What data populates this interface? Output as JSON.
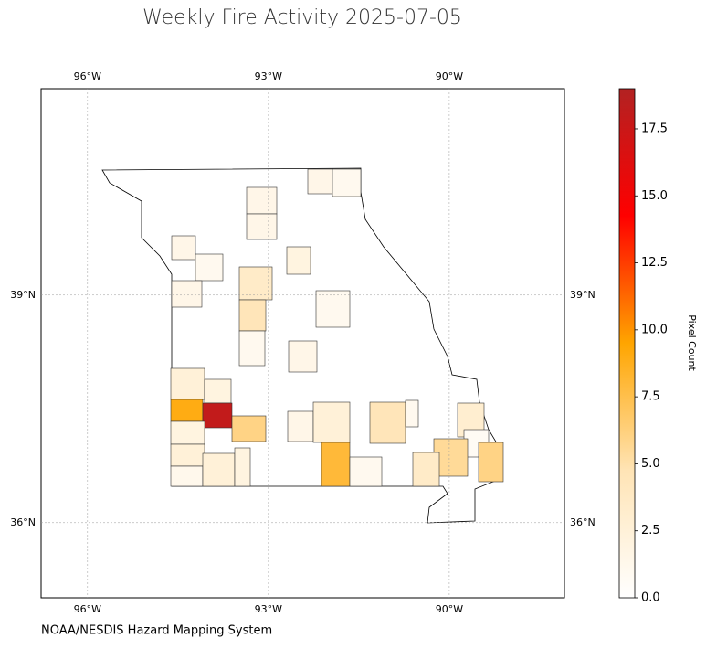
{
  "chart_data": {
    "type": "choropleth",
    "title": "Weekly Fire Activity 2025-07-05",
    "credit": "NOAA/NESDIS Hazard Mapping System",
    "colorbar_label": "Pixel Count",
    "xlim": [
      -96.77,
      -88.09
    ],
    "ylim": [
      35.01,
      41.72
    ],
    "xticks": [
      {
        "value": -96,
        "label": "96°W"
      },
      {
        "value": -93,
        "label": "93°W"
      },
      {
        "value": -90,
        "label": "90°W"
      }
    ],
    "yticks": [
      {
        "value": 39,
        "label": "39°N"
      },
      {
        "value": 36,
        "label": "36°N"
      }
    ],
    "grid": true,
    "clim": [
      0,
      19
    ],
    "colors": [
      "#ffffff",
      "#ffe4b5",
      "#ffa500",
      "#ff0000",
      "#b22222"
    ],
    "cticks": [
      {
        "value": 0,
        "label": "0.0"
      },
      2.5,
      {
        "value": 5,
        "label": "5.0"
      },
      7.5,
      {
        "value": 10,
        "label": "10.0"
      },
      12.5,
      {
        "value": 15,
        "label": "15.0"
      },
      17.5
    ],
    "values": [
      1.5,
      1,
      1.5,
      1.5,
      1.5,
      1,
      2,
      3.5,
      1.5,
      4.5,
      1,
      1,
      1.5,
      2.5,
      2,
      9,
      18,
      6,
      1.5,
      2.5,
      4.5,
      1,
      3,
      0.7,
      5.5,
      6,
      2,
      2.5,
      1.2,
      2.5,
      2,
      8,
      1,
      3.5
    ]
  }
}
